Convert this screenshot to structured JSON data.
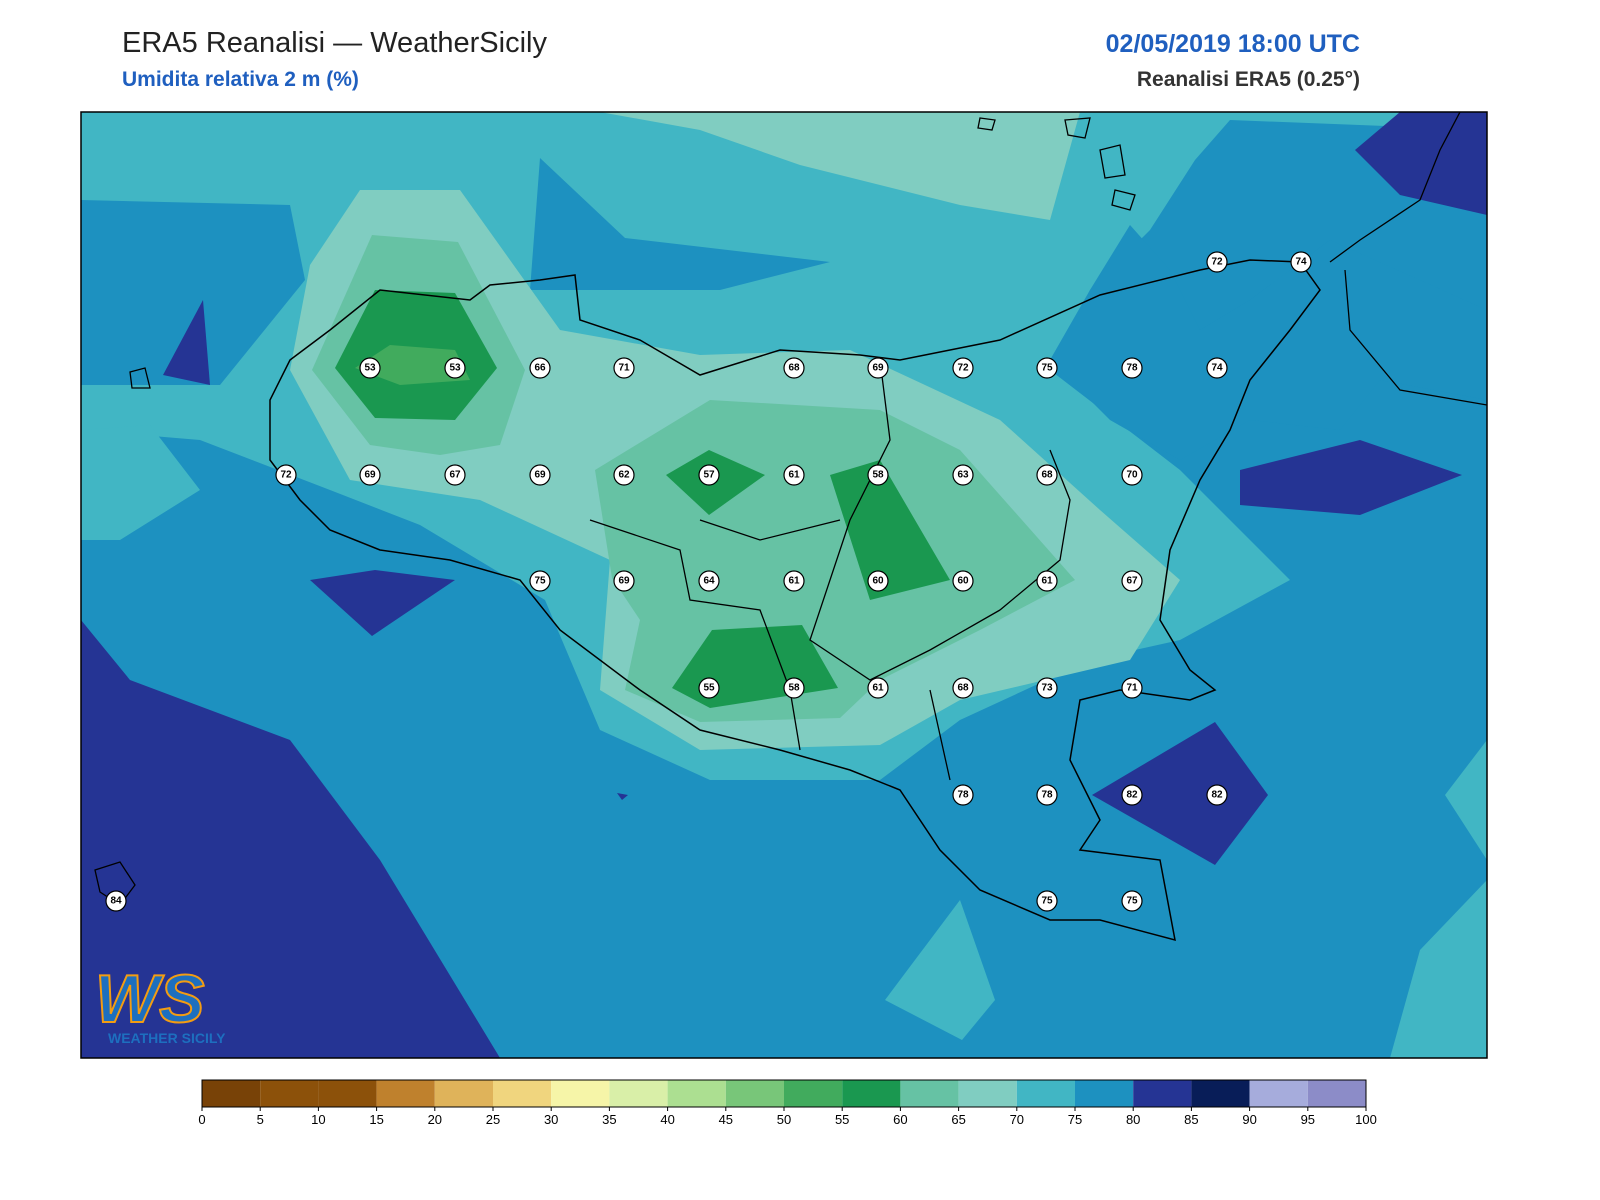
{
  "header": {
    "title": "ERA5 Reanalisi — WeatherSicily",
    "subtitle": "Umidita relativa 2 m (%)",
    "datetime": "02/05/2019 18:00 UTC",
    "source": "Reanalisi ERA5 (0.25°)"
  },
  "stations": {
    "values": [
      72,
      74,
      53,
      53,
      66,
      71,
      68,
      69,
      72,
      75,
      78,
      74,
      72,
      69,
      67,
      69,
      62,
      57,
      61,
      58,
      63,
      68,
      70,
      75,
      69,
      64,
      61,
      60,
      60,
      61,
      67,
      55,
      58,
      61,
      68,
      73,
      71,
      78,
      78,
      82,
      82,
      84,
      75,
      75
    ]
  },
  "colorbar": {
    "ticks": [
      0,
      5,
      10,
      15,
      20,
      25,
      30,
      35,
      40,
      45,
      50,
      55,
      60,
      65,
      70,
      75,
      80,
      85,
      90,
      95,
      100
    ],
    "colors": [
      "#784207",
      "#8c510a",
      "#8c510a",
      "#bf812d",
      "#dfb35a",
      "#f0d57e",
      "#f6f5a8",
      "#d9efa8",
      "#acdf91",
      "#78c679",
      "#41ab5d",
      "#1a9850",
      "#66c2a4",
      "#80cdc1",
      "#41b6c4",
      "#1d91c0",
      "#253494",
      "#081d58",
      "#a6acdc",
      "#8c8cc8"
    ]
  },
  "logo": {
    "mark": "WS",
    "text": "WEATHER SICILY"
  }
}
